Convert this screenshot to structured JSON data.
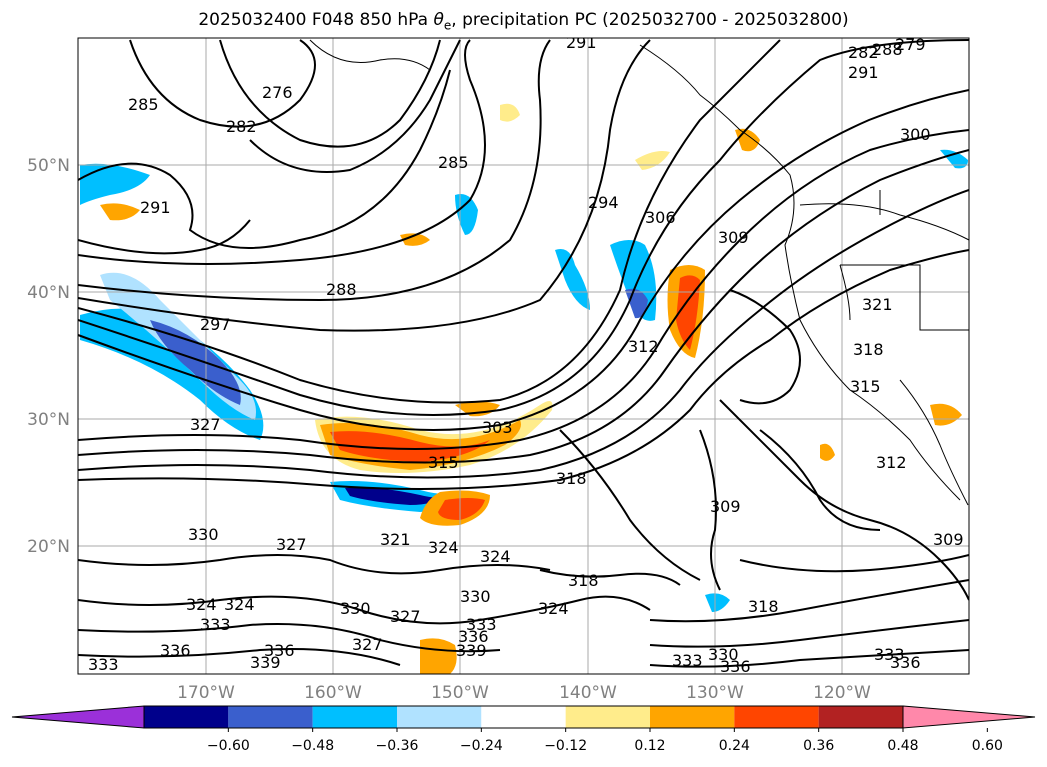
{
  "title_prefix": "2025032400 F048 850 hPa ",
  "title_symbol": "θ",
  "title_sub": "e",
  "title_suffix": ", precipitation PC (2025032700 - 2025032800)",
  "lat_labels": [
    "50°N",
    "40°N",
    "30°N",
    "20°N"
  ],
  "lon_labels": [
    "170°W",
    "160°W",
    "150°W",
    "140°W",
    "130°W",
    "120°W"
  ],
  "colorbar": {
    "ticks": [
      "−0.60",
      "−0.48",
      "−0.36",
      "−0.24",
      "−0.12",
      "0.12",
      "0.24",
      "0.36",
      "0.48",
      "0.60"
    ],
    "colors": [
      "#9b30d9",
      "#00008b",
      "#3a5fcd",
      "#00bfff",
      "#b0e2ff",
      "#ffffff",
      "#ffec8b",
      "#ffa500",
      "#ff4500",
      "#b22222",
      "#ff88aa"
    ]
  },
  "contour_labels": [
    "291",
    "282",
    "279",
    "288",
    "291",
    "276",
    "285",
    "282",
    "285",
    "300",
    "291",
    "294",
    "306",
    "309",
    "288",
    "297",
    "321",
    "318",
    "312",
    "315",
    "327",
    "303",
    "315",
    "318",
    "312",
    "309",
    "330",
    "327",
    "321",
    "324",
    "324",
    "309",
    "318",
    "324",
    "330",
    "327",
    "333",
    "336",
    "339",
    "324",
    "324",
    "333",
    "336",
    "330",
    "336",
    "333",
    "333",
    "318",
    "336",
    "339",
    "336",
    "333",
    "330",
    "327"
  ],
  "colors": {
    "contour": "#000000",
    "grid": "#aaaaaa",
    "axis_text": "#808080"
  }
}
